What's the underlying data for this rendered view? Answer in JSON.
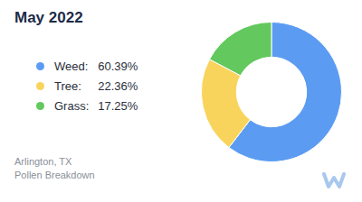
{
  "chart_data": {
    "type": "doughnut",
    "title": "May 2022",
    "categories": [
      "Weed:",
      "Tree:",
      "Grass:"
    ],
    "values": [
      60.39,
      22.36,
      17.25
    ],
    "value_labels": [
      "60.39%",
      "22.36%",
      "17.25%"
    ],
    "colors": [
      "#5b9bf2",
      "#f8d45c",
      "#63c85e"
    ],
    "legend": "left",
    "data_labels": false,
    "annotations": [
      "Arlington, TX",
      "Pollen Breakdown"
    ]
  }
}
